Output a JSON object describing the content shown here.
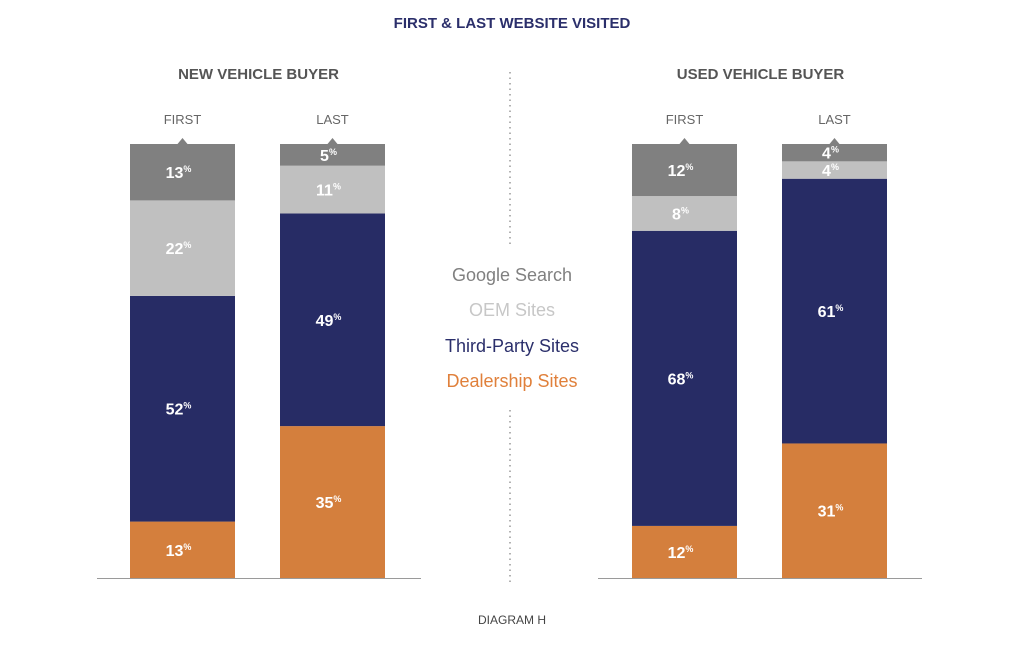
{
  "title": "FIRST & LAST WEBSITE VISITED",
  "footer": "DIAGRAM H",
  "colors": {
    "google": "#808080",
    "oem": "#c0c0c0",
    "third_party": "#272c65",
    "dealership": "#d47f3d",
    "title": "#2b2f6b"
  },
  "legend": [
    {
      "label": "Google Search",
      "color": "#808080"
    },
    {
      "label": "OEM Sites",
      "color": "#c7c7c7"
    },
    {
      "label": "Third-Party Sites",
      "color": "#2b2f6b"
    },
    {
      "label": "Dealership Sites",
      "color": "#e0803b"
    }
  ],
  "chart_data": [
    {
      "type": "bar",
      "stacked": true,
      "title": "NEW VEHICLE BUYER",
      "categories": [
        "FIRST",
        "LAST"
      ],
      "series": [
        {
          "name": "Dealership Sites",
          "values": [
            13,
            35
          ]
        },
        {
          "name": "Third-Party Sites",
          "values": [
            52,
            49
          ]
        },
        {
          "name": "OEM Sites",
          "values": [
            22,
            11
          ]
        },
        {
          "name": "Google Search",
          "values": [
            13,
            5
          ]
        }
      ],
      "unit": "%"
    },
    {
      "type": "bar",
      "stacked": true,
      "title": "USED VEHICLE BUYER",
      "categories": [
        "FIRST",
        "LAST"
      ],
      "series": [
        {
          "name": "Dealership Sites",
          "values": [
            12,
            31
          ]
        },
        {
          "name": "Third-Party Sites",
          "values": [
            68,
            61
          ]
        },
        {
          "name": "OEM Sites",
          "values": [
            8,
            4
          ]
        },
        {
          "name": "Google Search",
          "values": [
            12,
            4
          ]
        }
      ],
      "unit": "%"
    }
  ]
}
